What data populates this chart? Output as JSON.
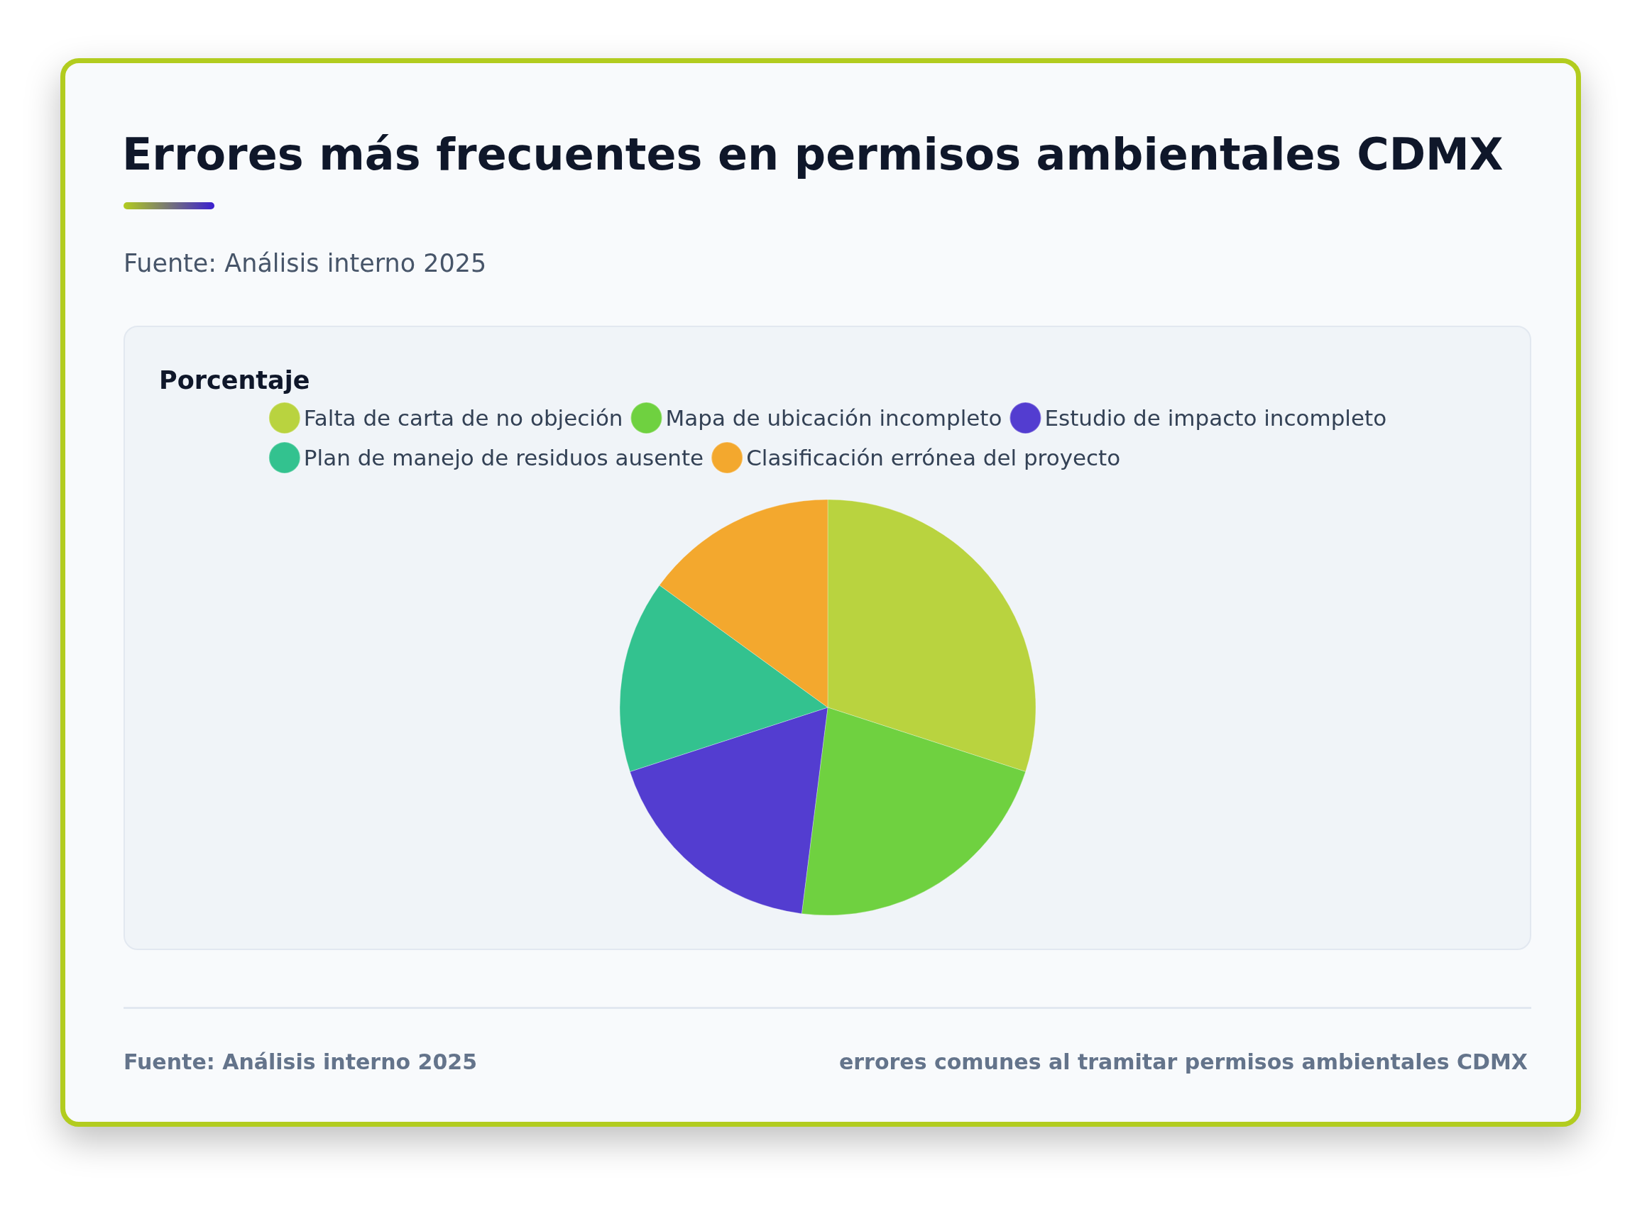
{
  "chart_data": {
    "type": "pie",
    "title": "Errores más frecuentes en permisos ambientales CDMX",
    "subtitle": "Fuente: Análisis interno 2025",
    "legend_title": "Porcentaje",
    "categories": [
      "Falta de carta de no objeción",
      "Mapa de ubicación incompleto",
      "Estudio de impacto incompleto",
      "Plan de manejo de residuos ausente",
      "Clasificación errónea del proyecto"
    ],
    "values": [
      30,
      22,
      18,
      15,
      15
    ],
    "colors": [
      "#b9d33f",
      "#6fd140",
      "#533dd0",
      "#33c28f",
      "#f3a82e"
    ],
    "legend": "top",
    "annotations": [
      "Fuente: Análisis interno 2025",
      "errores comunes al tramitar permisos ambientales CDMX"
    ]
  }
}
